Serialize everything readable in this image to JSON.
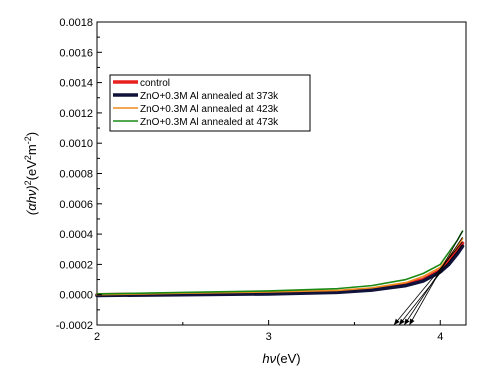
{
  "chart_data": {
    "type": "line",
    "xlim": [
      2,
      4.15
    ],
    "ylim": [
      -0.0002,
      0.0018
    ],
    "x_ticks": [
      "2",
      "3",
      "4"
    ],
    "x_tick_values": [
      2,
      3,
      4
    ],
    "y_ticks": [
      "-0.0002",
      "0.0000",
      "0.0002",
      "0.0004",
      "0.0006",
      "0.0008",
      "0.0010",
      "0.0012",
      "0.0014",
      "0.0016",
      "0.0018"
    ],
    "y_tick_values": [
      -0.0002,
      0,
      0.0002,
      0.0004,
      0.0006,
      0.0008,
      0.001,
      0.0012,
      0.0014,
      0.0016,
      0.0018
    ],
    "xlabel": {
      "italic": "hν",
      "rest": "(eV)"
    },
    "ylabel": {
      "italic": "(αhν)",
      "rest": "2",
      "unit": "(eV",
      "unit_sup": "2",
      "unit_mid": "m",
      "unit_sup2": "-2",
      "unit_end": ")"
    },
    "legend_position": "upper-left",
    "grid": false,
    "series": [
      {
        "name": "control",
        "color": "#e8201e",
        "width": 3.5,
        "x": [
          2.0,
          2.5,
          3.0,
          3.4,
          3.6,
          3.8,
          3.9,
          4.0,
          4.05,
          4.1,
          4.13
        ],
        "y": [
          0.0,
          5e-06,
          1e-05,
          2e-05,
          3.5e-05,
          7e-05,
          0.0001,
          0.00016,
          0.00022,
          0.00029,
          0.00034
        ]
      },
      {
        "name": "ZnO+0.3M Al annealed at 373k",
        "color": "#10123a",
        "width": 3.5,
        "x": [
          2.0,
          2.5,
          3.0,
          3.4,
          3.6,
          3.8,
          3.9,
          4.0,
          4.05,
          4.1,
          4.13
        ],
        "y": [
          -5e-06,
          0.0,
          5e-06,
          1.5e-05,
          3e-05,
          6e-05,
          9e-05,
          0.00015,
          0.0002,
          0.00027,
          0.00032
        ]
      },
      {
        "name": "ZnO+0.3M Al annealed at 423k",
        "color": "#f08a1c",
        "width": 1.6,
        "x": [
          2.0,
          2.5,
          3.0,
          3.4,
          3.6,
          3.8,
          3.9,
          4.0,
          4.05,
          4.1,
          4.13
        ],
        "y": [
          0.0,
          1e-05,
          1.8e-05,
          2.8e-05,
          4.5e-05,
          8e-05,
          0.00012,
          0.00018,
          0.00025,
          0.00032,
          0.00037
        ]
      },
      {
        "name": "ZnO+0.3M Al annealed at 473k",
        "color": "#1a8a14",
        "width": 1.6,
        "x": [
          2.0,
          2.5,
          3.0,
          3.4,
          3.6,
          3.8,
          3.9,
          4.0,
          4.05,
          4.1,
          4.13
        ],
        "y": [
          5e-06,
          1.5e-05,
          2.5e-05,
          4e-05,
          6e-05,
          0.0001,
          0.00014,
          0.0002,
          0.00028,
          0.00036,
          0.00042
        ]
      }
    ],
    "tangent_lines": [
      {
        "x": [
          3.73,
          4.13
        ],
        "y": [
          -0.0002,
          0.00035
        ]
      },
      {
        "x": [
          3.76,
          4.13
        ],
        "y": [
          -0.0002,
          0.00033
        ]
      },
      {
        "x": [
          3.79,
          4.13
        ],
        "y": [
          -0.0002,
          0.00038
        ]
      },
      {
        "x": [
          3.82,
          4.13
        ],
        "y": [
          -0.0002,
          0.00042
        ]
      }
    ]
  }
}
